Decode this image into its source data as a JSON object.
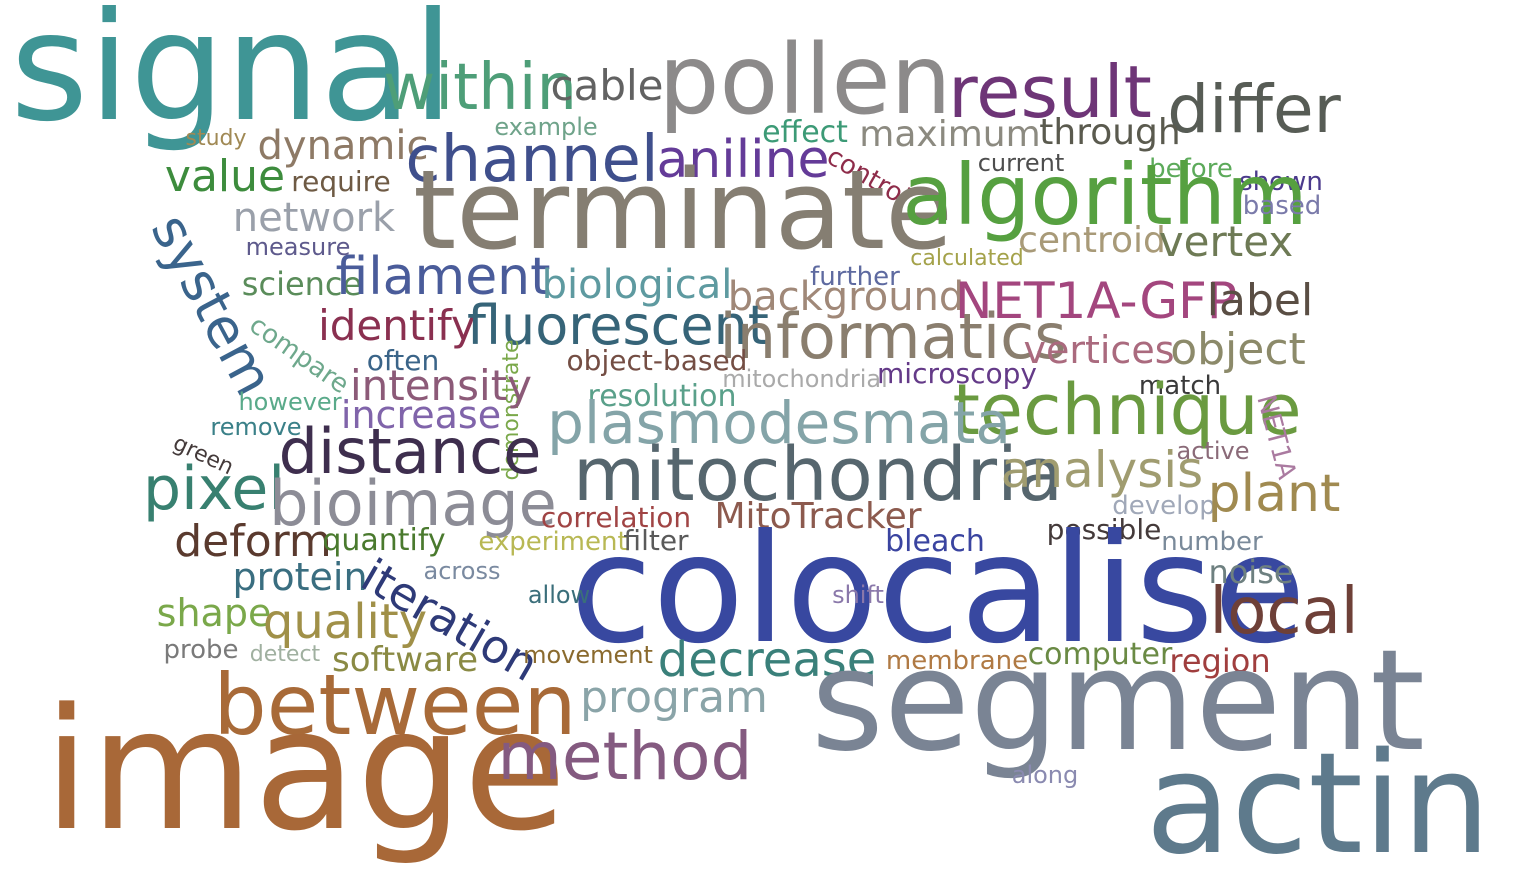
{
  "words": [
    {
      "text": "signal",
      "color": "#3f9595"
    },
    {
      "text": "pollen",
      "color": "#8c8a8a"
    },
    {
      "text": "within",
      "color": "#4e9e78"
    },
    {
      "text": "cable",
      "color": "#626262"
    },
    {
      "text": "result",
      "color": "#6e3577"
    },
    {
      "text": "differ",
      "color": "#575c55"
    },
    {
      "text": "study",
      "color": "#a08954"
    },
    {
      "text": "dynamic",
      "color": "#8e7a66"
    },
    {
      "text": "example",
      "color": "#6fa38a"
    },
    {
      "text": "effect",
      "color": "#3c9a76"
    },
    {
      "text": "maximum",
      "color": "#8c8a80"
    },
    {
      "text": "through",
      "color": "#5a5a4e"
    },
    {
      "text": "channel",
      "color": "#3f4f8c"
    },
    {
      "text": "aniline",
      "color": "#643b98"
    },
    {
      "text": "control",
      "color": "#8e2c4a"
    },
    {
      "text": "current",
      "color": "#4e4e4e"
    },
    {
      "text": "before",
      "color": "#5caa5a"
    },
    {
      "text": "shown",
      "color": "#4b3a8c"
    },
    {
      "text": "value",
      "color": "#3d8c3d"
    },
    {
      "text": "require",
      "color": "#6e5a44"
    },
    {
      "text": "terminate",
      "color": "#857e72"
    },
    {
      "text": "algorithm",
      "color": "#56a040"
    },
    {
      "text": "based",
      "color": "#7a7aaa"
    },
    {
      "text": "network",
      "color": "#9aa0aa"
    },
    {
      "text": "centroid",
      "color": "#a89a78"
    },
    {
      "text": "vertex",
      "color": "#6e7a55"
    },
    {
      "text": "measure",
      "color": "#5e5a8c"
    },
    {
      "text": "system",
      "color": "#3a648c"
    },
    {
      "text": "calculated",
      "color": "#a4a24a"
    },
    {
      "text": "further",
      "color": "#5e6aa0"
    },
    {
      "text": "science",
      "color": "#5a8c5a"
    },
    {
      "text": "filament",
      "color": "#4a5c9a"
    },
    {
      "text": "biological",
      "color": "#5e9aa0"
    },
    {
      "text": "background",
      "color": "#a08878"
    },
    {
      "text": "NET1A-GFP",
      "color": "#a3467e"
    },
    {
      "text": "label",
      "color": "#5a4e44"
    },
    {
      "text": "identify",
      "color": "#8a3050"
    },
    {
      "text": "fluorescent",
      "color": "#366478"
    },
    {
      "text": "informatics",
      "color": "#8a7e6e"
    },
    {
      "text": "compare",
      "color": "#6ea88c"
    },
    {
      "text": "vertices",
      "color": "#aa6a7e"
    },
    {
      "text": "object",
      "color": "#8c8a6a"
    },
    {
      "text": "demonstrate",
      "color": "#7aa84a"
    },
    {
      "text": "often",
      "color": "#3a6488"
    },
    {
      "text": "object-based",
      "color": "#744e44"
    },
    {
      "text": "mitochondrial",
      "color": "#aaaaaa"
    },
    {
      "text": "microscopy",
      "color": "#643a88"
    },
    {
      "text": "intensity",
      "color": "#8c5a78"
    },
    {
      "text": "match",
      "color": "#3a3a3a"
    },
    {
      "text": "however",
      "color": "#5aaa8a"
    },
    {
      "text": "resolution",
      "color": "#5aa08a"
    },
    {
      "text": "technique",
      "color": "#6a9a40"
    },
    {
      "text": "increase",
      "color": "#8064aa"
    },
    {
      "text": "remove",
      "color": "#3a8088"
    },
    {
      "text": "plasmodesmata",
      "color": "#84a4a8"
    },
    {
      "text": "NET1A",
      "color": "#aa7aa0"
    },
    {
      "text": "distance",
      "color": "#3e2e4e"
    },
    {
      "text": "green",
      "color": "#443a3a"
    },
    {
      "text": "active",
      "color": "#8a6a78"
    },
    {
      "text": "mitochondria",
      "color": "#56666e"
    },
    {
      "text": "analysis",
      "color": "#a09c70"
    },
    {
      "text": "pixel",
      "color": "#388070"
    },
    {
      "text": "bioimage",
      "color": "#8c8c96"
    },
    {
      "text": "develop",
      "color": "#a0a8b8"
    },
    {
      "text": "plant",
      "color": "#a08a50"
    },
    {
      "text": "correlation",
      "color": "#a04444"
    },
    {
      "text": "MitoTracker",
      "color": "#8c5a4e"
    },
    {
      "text": "possible",
      "color": "#443a3a"
    },
    {
      "text": "deform",
      "color": "#5a3a2e"
    },
    {
      "text": "quantify",
      "color": "#4a7a2e"
    },
    {
      "text": "experiment",
      "color": "#b8b854"
    },
    {
      "text": "filter",
      "color": "#5a5a5a"
    },
    {
      "text": "bleach",
      "color": "#3a44a0"
    },
    {
      "text": "number",
      "color": "#7a8a9a"
    },
    {
      "text": "colocalise",
      "color": "#3848a0"
    },
    {
      "text": "protein",
      "color": "#3a6e80"
    },
    {
      "text": "across",
      "color": "#7a8aa0"
    },
    {
      "text": "iteration",
      "color": "#2e3a78"
    },
    {
      "text": "noise",
      "color": "#6e8080"
    },
    {
      "text": "allow",
      "color": "#3a6e7a"
    },
    {
      "text": "shift",
      "color": "#8a78aa"
    },
    {
      "text": "shape",
      "color": "#7aa84a"
    },
    {
      "text": "quality",
      "color": "#a09048"
    },
    {
      "text": "local",
      "color": "#6e4038"
    },
    {
      "text": "probe",
      "color": "#7a7a7a"
    },
    {
      "text": "detect",
      "color": "#a0b0a0"
    },
    {
      "text": "software",
      "color": "#8a8a44"
    },
    {
      "text": "movement",
      "color": "#8a6a2e"
    },
    {
      "text": "decrease",
      "color": "#3a807a"
    },
    {
      "text": "membrane",
      "color": "#b07a44"
    },
    {
      "text": "computer",
      "color": "#6a8a44"
    },
    {
      "text": "region",
      "color": "#a03e3e"
    },
    {
      "text": "between",
      "color": "#a86a38"
    },
    {
      "text": "program",
      "color": "#8aa4a8"
    },
    {
      "text": "segment",
      "color": "#7a8494"
    },
    {
      "text": "image",
      "color": "#a86838"
    },
    {
      "text": "method",
      "color": "#845a80"
    },
    {
      "text": "along",
      "color": "#8a8ab0"
    },
    {
      "text": "actin",
      "color": "#5e7a8c"
    }
  ]
}
